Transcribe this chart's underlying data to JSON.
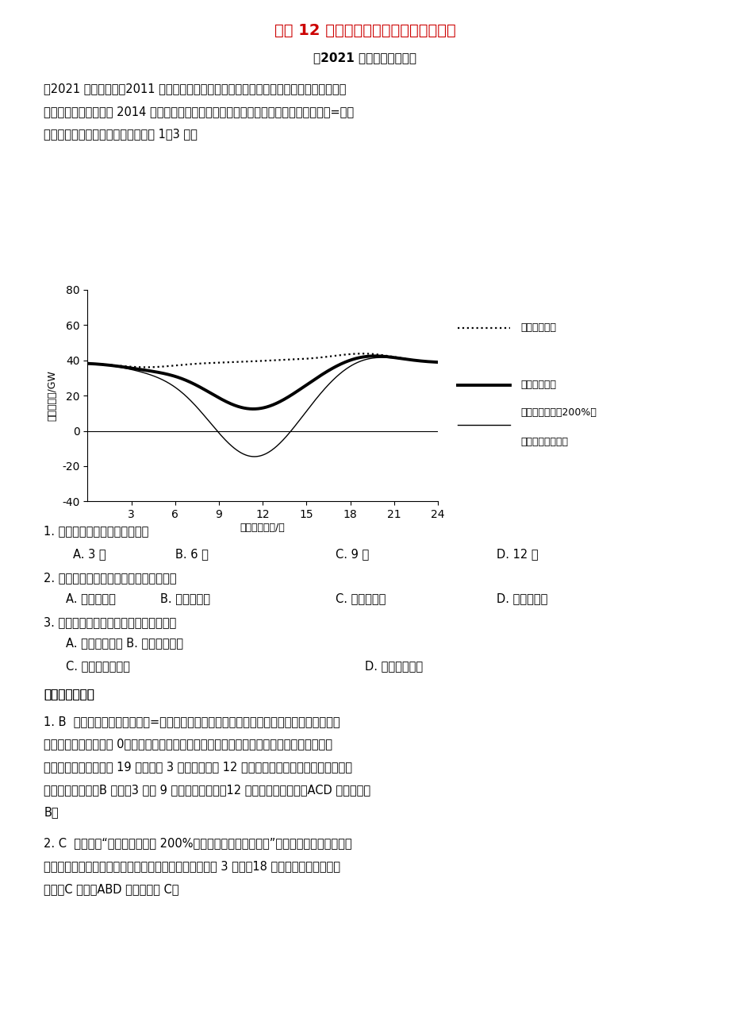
{
  "title": "专题4 12 区域可持续发展与地理信息技术",
  "title2": "专题 12 区域可持续发展与地理信息技术",
  "subtitle": "【2021 年高考真题精选】",
  "chart_ylabel": "电力需求量/GW",
  "chart_xlabel": "格林尼治时间/时",
  "legend1": "电力总需求量",
  "legend2": "电力净需求量",
  "legend3a": "光伏发电量增加200%时",
  "legend3b": "电力净需求量预测",
  "ylim": [
    -40,
    80
  ],
  "yticks": [
    -40,
    -20,
    0,
    20,
    40,
    60,
    80
  ],
  "xticks": [
    3,
    6,
    9,
    12,
    15,
    18,
    21,
    24
  ],
  "bg_color": "#ffffff",
  "title_color": "#cc0000"
}
